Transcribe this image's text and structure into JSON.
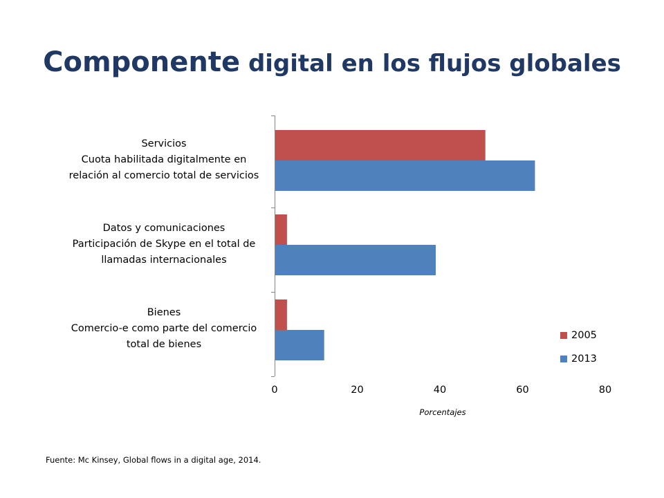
{
  "title": {
    "bold_word": "Componente",
    "rest": "digital en los flujos globales"
  },
  "chart_data": {
    "type": "bar",
    "orientation": "horizontal",
    "categories": [
      {
        "lines": [
          "Servicios",
          "Cuota habilitada digitalmente en",
          "relación al comercio total de servicios"
        ]
      },
      {
        "lines": [
          "Datos y comunicaciones",
          "Participación de Skype en el total de",
          "llamadas internacionales"
        ]
      },
      {
        "lines": [
          "Bienes",
          "Comercio-e como parte del comercio",
          "total de bienes"
        ]
      }
    ],
    "series": [
      {
        "name": "2005",
        "color": "#C0504D",
        "values": [
          51,
          3,
          3
        ]
      },
      {
        "name": "2013",
        "color": "#4F81BD",
        "values": [
          63,
          39,
          12
        ]
      }
    ],
    "xlim": [
      0,
      80
    ],
    "xticks": [
      "0",
      "20",
      "40",
      "60",
      "80"
    ],
    "xlabel": "Porcentajes",
    "legend_position": "bottom-right",
    "grid": false
  },
  "source": "Fuente: Mc Kinsey, Global flows in a digital age, 2014."
}
